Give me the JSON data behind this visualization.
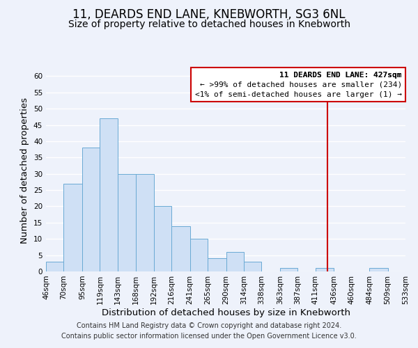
{
  "title": "11, DEARDS END LANE, KNEBWORTH, SG3 6NL",
  "subtitle": "Size of property relative to detached houses in Knebworth",
  "xlabel": "Distribution of detached houses by size in Knebworth",
  "ylabel": "Number of detached properties",
  "bar_color": "#cfe0f5",
  "bar_edge_color": "#6aaad4",
  "bin_edges": [
    46,
    70,
    95,
    119,
    143,
    168,
    192,
    216,
    241,
    265,
    290,
    314,
    338,
    363,
    387,
    411,
    436,
    460,
    484,
    509,
    533
  ],
  "counts": [
    3,
    27,
    38,
    47,
    30,
    30,
    20,
    14,
    10,
    4,
    6,
    3,
    0,
    1,
    0,
    1,
    0,
    0,
    1,
    0
  ],
  "tick_labels": [
    "46sqm",
    "70sqm",
    "95sqm",
    "119sqm",
    "143sqm",
    "168sqm",
    "192sqm",
    "216sqm",
    "241sqm",
    "265sqm",
    "290sqm",
    "314sqm",
    "338sqm",
    "363sqm",
    "387sqm",
    "411sqm",
    "436sqm",
    "460sqm",
    "484sqm",
    "509sqm",
    "533sqm"
  ],
  "ylim": [
    0,
    62
  ],
  "yticks": [
    0,
    5,
    10,
    15,
    20,
    25,
    30,
    35,
    40,
    45,
    50,
    55,
    60
  ],
  "vline_x": 427,
  "vline_color": "#cc0000",
  "legend_title": "11 DEARDS END LANE: 427sqm",
  "legend_line1": "← >99% of detached houses are smaller (234)",
  "legend_line2": "<1% of semi-detached houses are larger (1) →",
  "legend_box_color": "#ffffff",
  "legend_border_color": "#cc0000",
  "footer_line1": "Contains HM Land Registry data © Crown copyright and database right 2024.",
  "footer_line2": "Contains public sector information licensed under the Open Government Licence v3.0.",
  "background_color": "#eef2fb",
  "grid_color": "#ffffff",
  "title_fontsize": 12,
  "subtitle_fontsize": 10,
  "axis_label_fontsize": 9.5,
  "tick_fontsize": 7.5,
  "legend_fontsize": 8,
  "footer_fontsize": 7
}
